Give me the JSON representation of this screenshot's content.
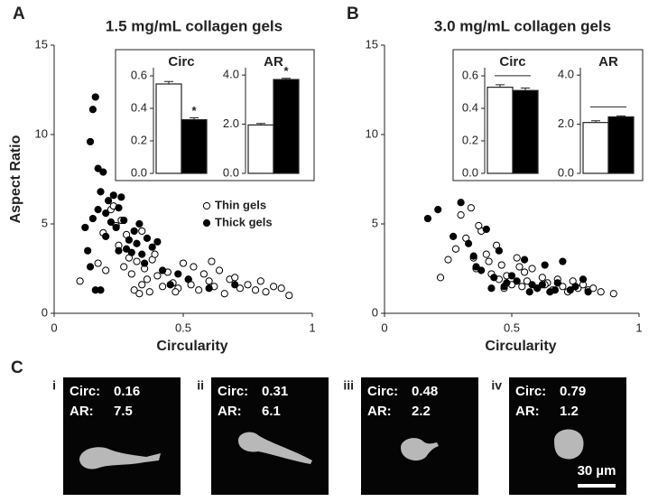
{
  "panel_labels": {
    "a": "A",
    "b": "B",
    "c": "C"
  },
  "chart_data": [
    {
      "type": "scatter",
      "title": "1.5 mg/mL collagen gels",
      "xlabel": "Circularity",
      "ylabel": "Aspect Ratio",
      "xlim": [
        0,
        1
      ],
      "xticks": [
        0,
        0.5,
        1
      ],
      "ylim": [
        0,
        15
      ],
      "yticks": [
        0,
        5,
        10,
        15
      ],
      "legend": true,
      "series": [
        {
          "name": "Thin gels",
          "marker": "open",
          "color": "#000000",
          "x": [
            0.1,
            0.17,
            0.19,
            0.2,
            0.22,
            0.23,
            0.24,
            0.25,
            0.26,
            0.27,
            0.28,
            0.29,
            0.3,
            0.31,
            0.32,
            0.33,
            0.34,
            0.35,
            0.36,
            0.37,
            0.38,
            0.4,
            0.42,
            0.44,
            0.46,
            0.48,
            0.5,
            0.52,
            0.54,
            0.56,
            0.58,
            0.6,
            0.62,
            0.64,
            0.66,
            0.68,
            0.7,
            0.72,
            0.75,
            0.78,
            0.8,
            0.82,
            0.85,
            0.88,
            0.91,
            0.34,
            0.39,
            0.47,
            0.53,
            0.61
          ],
          "values": [
            1.8,
            2.8,
            4.5,
            2.4,
            5.8,
            6.0,
            4.9,
            3.8,
            5.2,
            2.6,
            4.4,
            3.1,
            2.2,
            1.3,
            2.9,
            1.1,
            1.6,
            2.5,
            1.9,
            1.2,
            3.0,
            2.1,
            1.5,
            2.3,
            1.7,
            1.4,
            2.8,
            1.9,
            2.6,
            1.3,
            2.2,
            1.8,
            1.5,
            2.4,
            1.1,
            1.9,
            2.0,
            1.4,
            1.6,
            1.3,
            1.8,
            1.2,
            1.5,
            1.4,
            1.0,
            4.6,
            3.3,
            1.2,
            1.6,
            2.9
          ]
        },
        {
          "name": "Thick gels",
          "marker": "filled",
          "color": "#000000",
          "x": [
            0.12,
            0.14,
            0.15,
            0.16,
            0.13,
            0.17,
            0.18,
            0.15,
            0.19,
            0.2,
            0.21,
            0.16,
            0.22,
            0.23,
            0.24,
            0.25,
            0.26,
            0.27,
            0.28,
            0.29,
            0.3,
            0.31,
            0.32,
            0.33,
            0.34,
            0.35,
            0.36,
            0.38,
            0.4,
            0.42,
            0.45,
            0.48,
            0.18,
            0.2,
            0.25,
            0.14,
            0.17,
            0.52,
            0.6,
            0.7
          ],
          "values": [
            4.8,
            9.6,
            11.4,
            12.1,
            3.5,
            8.1,
            6.8,
            5.3,
            7.9,
            5.6,
            6.3,
            1.3,
            5.1,
            6.6,
            4.8,
            5.9,
            6.5,
            5.2,
            3.6,
            4.1,
            3.4,
            4.6,
            3.9,
            5.0,
            3.3,
            2.8,
            4.2,
            3.7,
            4.0,
            2.4,
            1.6,
            2.2,
            1.3,
            4.3,
            3.5,
            2.6,
            5.8,
            1.9,
            1.4,
            1.6
          ]
        }
      ]
    },
    {
      "type": "bar",
      "title": "Circ",
      "categories": [
        null,
        null
      ],
      "values": [
        0.55,
        0.33
      ],
      "errors": [
        0.015,
        0.012
      ],
      "colors": [
        "#ffffff",
        "#000000"
      ],
      "annotation": "*",
      "ylim": [
        0,
        0.65
      ],
      "yticks": [
        {
          "value": 0,
          "label": "0.0"
        },
        {
          "value": 0.2,
          "label": "0.2"
        },
        {
          "value": 0.4,
          "label": "0.4"
        },
        {
          "value": 0.6,
          "label": "0.6"
        }
      ]
    },
    {
      "type": "bar",
      "title": "AR",
      "categories": [
        null,
        null
      ],
      "values": [
        1.97,
        3.82
      ],
      "errors": [
        0.06,
        0.05
      ],
      "colors": [
        "#ffffff",
        "#000000"
      ],
      "annotation": "*",
      "ylim": [
        0,
        4.3
      ],
      "yticks": [
        {
          "value": 0,
          "label": "0.0"
        },
        {
          "value": 2,
          "label": "2.0"
        },
        {
          "value": 4,
          "label": "4.0"
        }
      ]
    },
    {
      "type": "scatter",
      "title": "3.0 mg/mL collagen gels",
      "xlabel": "Circularity",
      "xlim": [
        0,
        1
      ],
      "xticks": [
        0,
        0.5,
        1
      ],
      "ylim": [
        0,
        15
      ],
      "yticks": [
        0,
        5,
        10,
        15
      ],
      "legend": false,
      "series": [
        {
          "marker": "open",
          "color": "#000000",
          "x": [
            0.22,
            0.25,
            0.28,
            0.3,
            0.32,
            0.34,
            0.35,
            0.36,
            0.38,
            0.4,
            0.42,
            0.44,
            0.45,
            0.46,
            0.48,
            0.5,
            0.52,
            0.54,
            0.55,
            0.56,
            0.58,
            0.6,
            0.62,
            0.64,
            0.66,
            0.68,
            0.7,
            0.72,
            0.74,
            0.76,
            0.78,
            0.8,
            0.82,
            0.85,
            0.9,
            0.37,
            0.41,
            0.47,
            0.53,
            0.63
          ],
          "values": [
            2.0,
            3.0,
            3.6,
            5.5,
            4.2,
            5.9,
            3.1,
            2.5,
            4.6,
            3.3,
            2.2,
            3.8,
            1.9,
            2.7,
            2.1,
            1.6,
            3.1,
            1.5,
            2.3,
            1.8,
            2.5,
            1.4,
            2.0,
            1.7,
            1.3,
            1.9,
            1.5,
            1.2,
            1.8,
            1.4,
            1.6,
            1.3,
            1.4,
            1.2,
            1.1,
            4.9,
            2.9,
            1.4,
            2.6,
            1.6
          ]
        },
        {
          "marker": "filled",
          "color": "#000000",
          "x": [
            0.17,
            0.21,
            0.27,
            0.3,
            0.33,
            0.35,
            0.38,
            0.4,
            0.43,
            0.45,
            0.47,
            0.5,
            0.52,
            0.55,
            0.58,
            0.6,
            0.63,
            0.65,
            0.68,
            0.7,
            0.73,
            0.75,
            0.78,
            0.8,
            0.36,
            0.42,
            0.48,
            0.57,
            0.62,
            0.67
          ],
          "values": [
            5.3,
            5.8,
            4.3,
            6.2,
            3.9,
            3.2,
            2.4,
            4.7,
            2.0,
            3.5,
            1.5,
            2.1,
            1.8,
            3.0,
            1.6,
            1.4,
            2.7,
            1.2,
            1.7,
            2.9,
            1.3,
            1.5,
            1.9,
            1.2,
            2.6,
            1.4,
            1.7,
            1.2,
            1.6,
            1.3
          ]
        }
      ]
    },
    {
      "type": "bar",
      "title": "Circ",
      "categories": [
        null,
        null
      ],
      "values": [
        0.53,
        0.51
      ],
      "errors": [
        0.015,
        0.015
      ],
      "colors": [
        "#ffffff",
        "#000000"
      ],
      "bracket": true,
      "ylim": [
        0,
        0.65
      ],
      "yticks": [
        {
          "value": 0,
          "label": "0.0"
        },
        {
          "value": 0.2,
          "label": "0.2"
        },
        {
          "value": 0.4,
          "label": "0.4"
        },
        {
          "value": 0.6,
          "label": "0.6"
        }
      ]
    },
    {
      "type": "bar",
      "title": "AR",
      "categories": [
        null,
        null
      ],
      "values": [
        2.07,
        2.3
      ],
      "errors": [
        0.07,
        0.04
      ],
      "colors": [
        "#ffffff",
        "#000000"
      ],
      "bracket": true,
      "ylim": [
        0,
        4.3
      ],
      "yticks": [
        {
          "value": 0,
          "label": "0.0"
        },
        {
          "value": 2,
          "label": "2.0"
        },
        {
          "value": 4,
          "label": "4.0"
        }
      ]
    }
  ],
  "cells": [
    {
      "label": "i",
      "circ_label": "Circ:",
      "circ": 0.16,
      "ar_label": "AR:",
      "ar": 7.5
    },
    {
      "label": "ii",
      "circ_label": "Circ:",
      "circ": 0.31,
      "ar_label": "AR:",
      "ar": 6.1
    },
    {
      "label": "iii",
      "circ_label": "Circ:",
      "circ": 0.48,
      "ar_label": "AR:",
      "ar": 2.2
    },
    {
      "label": "iv",
      "circ_label": "Circ:",
      "circ": 0.79,
      "ar_label": "AR:",
      "ar": 1.2
    }
  ],
  "scale_bar": "30 µm"
}
